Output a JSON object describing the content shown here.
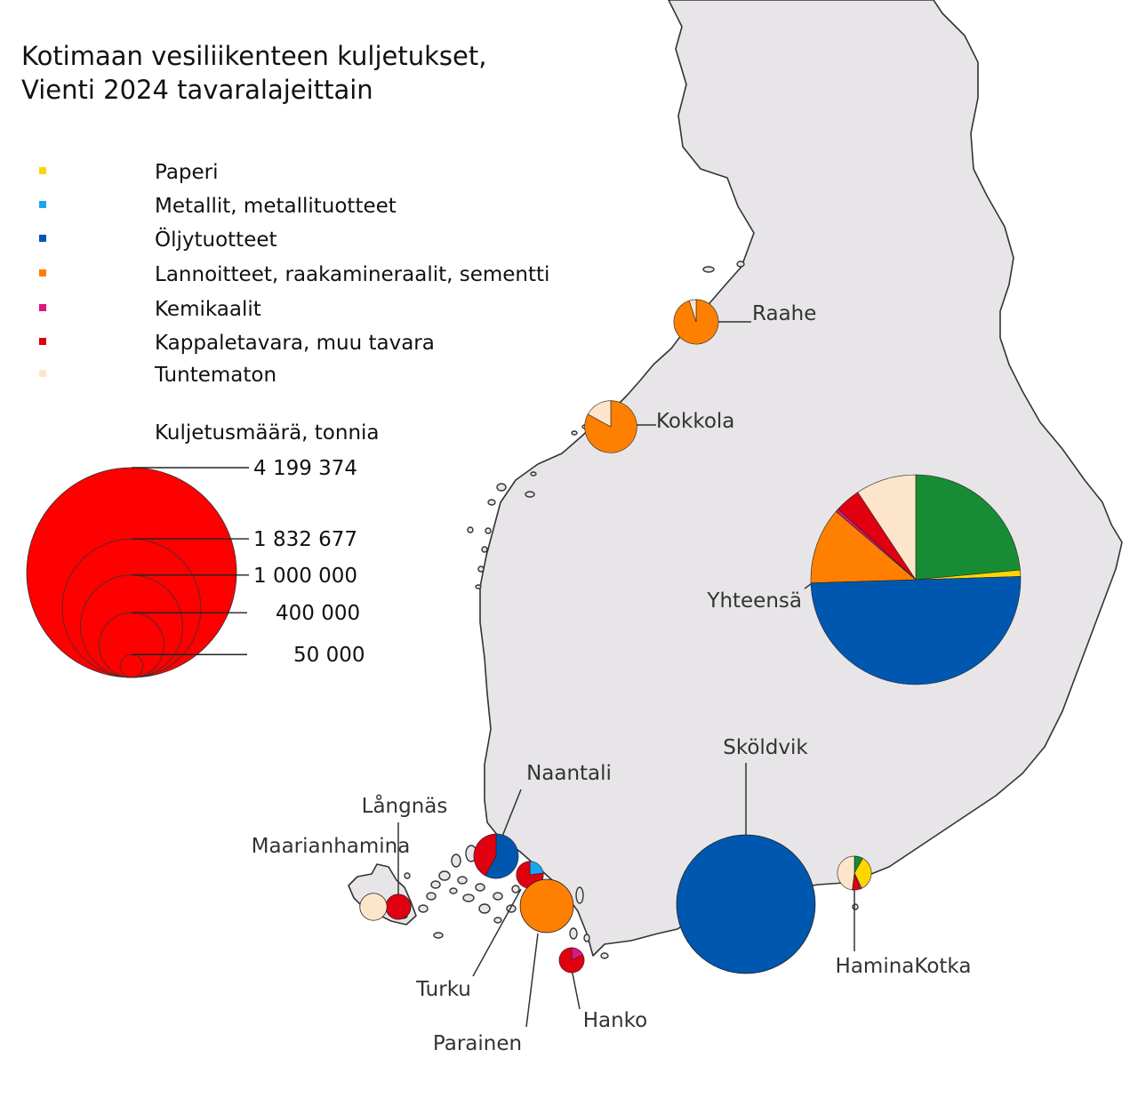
{
  "title": {
    "line1": "Kotimaan vesiliikenteen kuljetukset,",
    "line2": "Vienti 2024 tavaralajeittain"
  },
  "legend": {
    "items": [
      {
        "label": "Paperi",
        "color": "#ffd700"
      },
      {
        "label": "Metallit, metallituotteet",
        "color": "#1ca4f0"
      },
      {
        "label": "Öljytuotteet",
        "color": "#0057b0"
      },
      {
        "label": "Lannoitteet, raakamineraalit, sementti",
        "color": "#ff8000"
      },
      {
        "label": "Kemikaalit",
        "color": "#e0157a"
      },
      {
        "label": "Kappaletavara, muu tavara",
        "color": "#e00010"
      },
      {
        "label": "Tuntematon",
        "color": "#fde5cc"
      }
    ],
    "unassigned_color": "#178c34"
  },
  "size_legend": {
    "title": "Kuljetusmäärä, tonnia",
    "values": [
      "4 199 374",
      "1 832 677",
      "1 000 000",
      "400 000",
      "50 000"
    ],
    "tonnes": [
      4199374,
      1832677,
      1000000,
      400000,
      50000
    ],
    "fill": "#ff0000"
  },
  "chart_data": {
    "type": "pie-map",
    "units": "tonnia",
    "ports": [
      {
        "name": "Raahe",
        "tonnes": 190000,
        "shares": {
          "Lannoitteet, raakamineraalit, sementti": 0.95,
          "Tuntematon": 0.05
        }
      },
      {
        "name": "Kokkola",
        "tonnes": 260000,
        "shares": {
          "Lannoitteet, raakamineraalit, sementti": 0.83,
          "Tuntematon": 0.17
        }
      },
      {
        "name": "Yhteensä",
        "tonnes": 4199374,
        "shares": {
          "Muu": 0.24,
          "Paperi": 0.01,
          "Öljytuotteet": 0.51,
          "Lannoitteet, raakamineraalit, sementti": 0.12,
          "Kemikaalit": 0.005,
          "Kappaletavara, muu tavara": 0.04,
          "Tuntematon": 0.095
        }
      },
      {
        "name": "Sköldvik",
        "tonnes": 1832677,
        "shares": {
          "Öljytuotteet": 1.0
        }
      },
      {
        "name": "HaminaKotka",
        "tonnes": 110000,
        "shares": {
          "Muu": 0.08,
          "Paperi": 0.34,
          "Kemikaalit": 0.02,
          "Kappaletavara, muu tavara": 0.07,
          "Tuntematon": 0.47
        }
      },
      {
        "name": "Naantali",
        "tonnes": 190000,
        "shares": {
          "Öljytuotteet": 0.58,
          "Kappaletavara, muu tavara": 0.42
        }
      },
      {
        "name": "Turku",
        "tonnes": 70000,
        "shares": {
          "Metallit, metallituotteet": 0.23,
          "Kappaletavara, muu tavara": 0.77
        }
      },
      {
        "name": "Parainen",
        "tonnes": 270000,
        "shares": {
          "Lannoitteet, raakamineraalit, sementti": 1.0
        }
      },
      {
        "name": "Hanko",
        "tonnes": 60000,
        "shares": {
          "Kemikaalit": 0.18,
          "Kappaletavara, muu tavara": 0.82
        }
      },
      {
        "name": "Långnäs",
        "tonnes": 60000,
        "shares": {
          "Kappaletavara, muu tavara": 1.0
        }
      },
      {
        "name": "Maarianhamina",
        "tonnes": 70000,
        "shares": {
          "Tuntematon": 1.0
        }
      }
    ]
  }
}
